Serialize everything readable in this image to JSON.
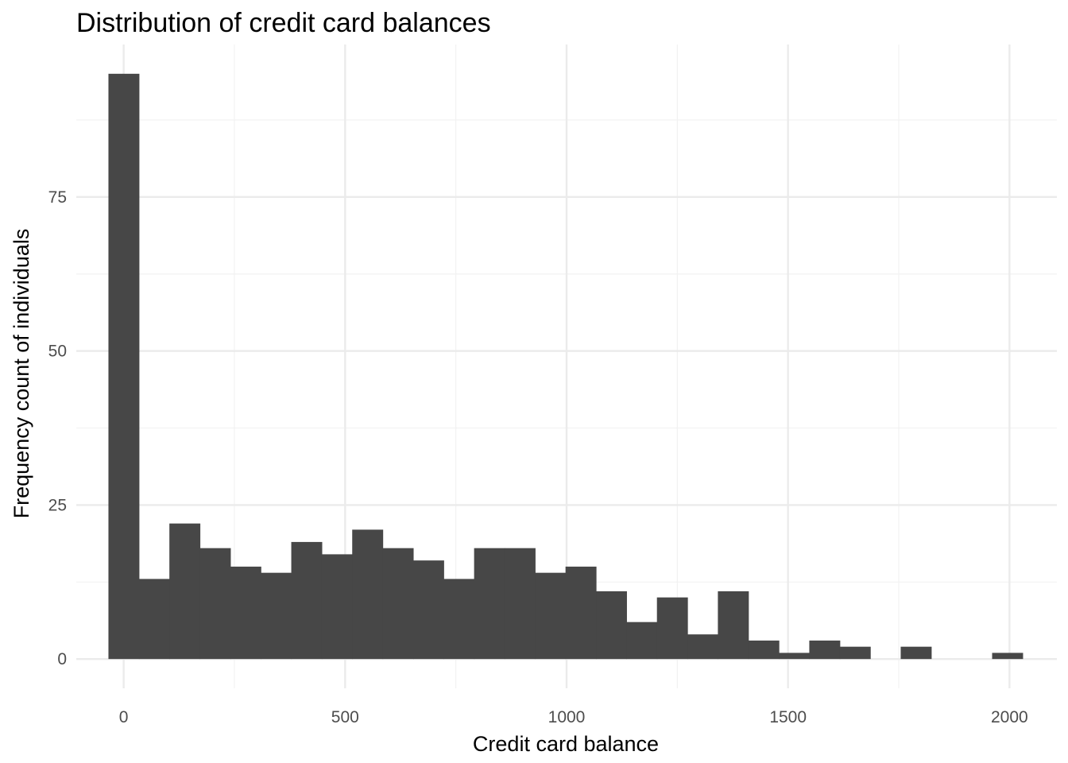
{
  "chart_data": {
    "type": "bar",
    "title": "Distribution of credit card balances",
    "xlabel": "Credit card balance",
    "ylabel": "Frequency count of individuals",
    "bin_width": 68.8,
    "bins": [
      {
        "center": 0,
        "count": 95
      },
      {
        "center": 68.8,
        "count": 13
      },
      {
        "center": 137.6,
        "count": 22
      },
      {
        "center": 206.4,
        "count": 18
      },
      {
        "center": 275.2,
        "count": 15
      },
      {
        "center": 344,
        "count": 14
      },
      {
        "center": 412.8,
        "count": 19
      },
      {
        "center": 481.6,
        "count": 17
      },
      {
        "center": 550.4,
        "count": 21
      },
      {
        "center": 619.2,
        "count": 18
      },
      {
        "center": 688,
        "count": 16
      },
      {
        "center": 756.8,
        "count": 13
      },
      {
        "center": 825.6,
        "count": 18
      },
      {
        "center": 894.4,
        "count": 18
      },
      {
        "center": 963.2,
        "count": 14
      },
      {
        "center": 1032,
        "count": 15
      },
      {
        "center": 1100.8,
        "count": 11
      },
      {
        "center": 1169.6,
        "count": 6
      },
      {
        "center": 1238.4,
        "count": 10
      },
      {
        "center": 1307.2,
        "count": 4
      },
      {
        "center": 1376,
        "count": 11
      },
      {
        "center": 1444.8,
        "count": 3
      },
      {
        "center": 1513.6,
        "count": 1
      },
      {
        "center": 1582.4,
        "count": 3
      },
      {
        "center": 1651.2,
        "count": 2
      },
      {
        "center": 1720,
        "count": 0
      },
      {
        "center": 1788.8,
        "count": 2
      },
      {
        "center": 1857.6,
        "count": 0
      },
      {
        "center": 1926.4,
        "count": 0
      },
      {
        "center": 1995.2,
        "count": 1
      }
    ],
    "xlim": [
      -107,
      2107
    ],
    "ylim": [
      -4.75,
      99.75
    ],
    "x_ticks": [
      0,
      500,
      1000,
      1500,
      2000
    ],
    "x_tick_labels": [
      "0",
      "500",
      "1000",
      "1500",
      "2000"
    ],
    "y_ticks": [
      0,
      25,
      50,
      75
    ],
    "y_tick_labels": [
      "0",
      "25",
      "50",
      "75"
    ],
    "grid": true,
    "bar_color": "#474747",
    "grid_major_color": "#ebebeb",
    "grid_minor_color": "#f2f2f2",
    "legend": "none"
  }
}
